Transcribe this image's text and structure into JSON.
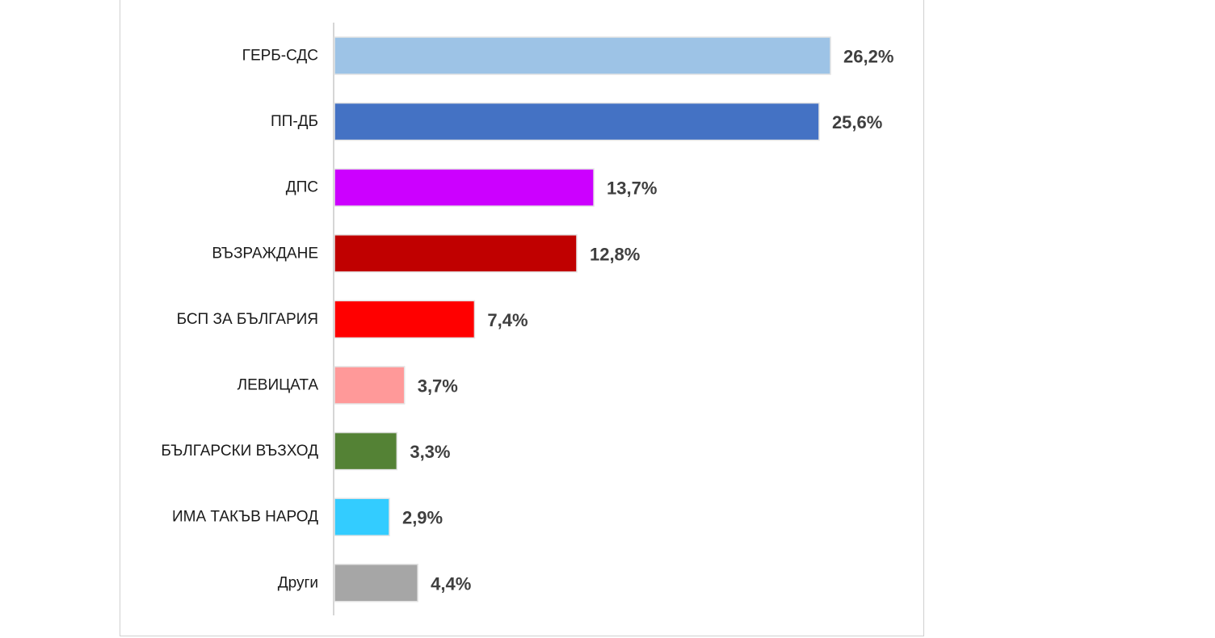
{
  "chart_data": {
    "type": "bar",
    "orientation": "horizontal",
    "categories": [
      "ГЕРБ-СДС",
      "ПП-ДБ",
      "ДПС",
      "ВЪЗРАЖДАНЕ",
      "БСП ЗА БЪЛГАРИЯ",
      "ЛЕВИЦАТА",
      "БЪЛГАРСКИ ВЪЗХОД",
      "ИМА ТАКЪВ НАРОД",
      "Други"
    ],
    "values": [
      26.2,
      25.6,
      13.7,
      12.8,
      7.4,
      3.7,
      3.3,
      2.9,
      4.4
    ],
    "value_labels": [
      "26,2%",
      "25,6%",
      "13,7%",
      "12,8%",
      "7,4%",
      "3,7%",
      "3,3%",
      "2,9%",
      "4,4%"
    ],
    "colors": [
      "#9dc3e6",
      "#4472c4",
      "#cc00ff",
      "#c00000",
      "#ff0000",
      "#ff9999",
      "#548235",
      "#33ccff",
      "#a6a6a6"
    ],
    "unit": "%",
    "grid": false,
    "legend": "none"
  }
}
